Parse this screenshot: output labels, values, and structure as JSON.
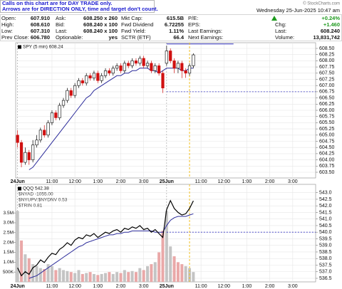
{
  "header": {
    "notice": [
      "Calls on this chart are for DAY TRADE only.",
      "Arrows are for DIRECTION ONLY, time and target don't count."
    ],
    "copyright": "© StockCharts.com",
    "date": "Wednesday 25-Jun-2025 10:47 am",
    "quote": [
      [
        {
          "label": "Open:",
          "value": "607.910"
        },
        {
          "label": "High:",
          "value": "608.610"
        },
        {
          "label": "Low:",
          "value": "607.310"
        },
        {
          "label": "Prev Close:",
          "value": "606.780"
        }
      ],
      [
        {
          "label": "Ask:",
          "value": "608.250 x 260"
        },
        {
          "label": "Bid:",
          "value": "608.240 x 100"
        },
        {
          "label": "Last:",
          "value": "608.240 x 100"
        },
        {
          "label": "Optionable:",
          "value": "yes"
        }
      ],
      [
        {
          "label": "Mkt Cap:",
          "value": "615.5B"
        },
        {
          "label": "Fwd Dividend",
          "value": "6.72255"
        },
        {
          "label": "Fwd Yield:",
          "value": "1.11%"
        },
        {
          "label": "SCTR (ETF)",
          "value": "66.4"
        }
      ],
      [
        {
          "label": "P/E:"
        },
        {
          "label": "EPS:"
        },
        {
          "label": "Last Earnings:"
        },
        {
          "label": "Next Earnings:"
        }
      ],
      [
        {
          "value": "+0.24%"
        },
        {
          "label": "Chg:",
          "value": "+1.460"
        },
        {
          "label": "Last:",
          "value": "608.240"
        },
        {
          "label": "Volume:",
          "value": "13,831,742"
        }
      ]
    ]
  },
  "chart_data": [
    {
      "type": "candlestick",
      "legend": [
        "SPY (5 min) 608.24"
      ],
      "x": [
        0,
        2,
        4,
        6,
        8,
        10,
        12,
        14,
        16,
        18,
        20,
        22,
        24,
        26,
        28,
        30,
        32,
        34,
        36,
        38,
        40,
        42,
        44,
        46,
        48,
        50,
        52,
        54,
        56,
        58,
        60,
        62,
        64,
        66,
        68,
        70,
        72,
        74,
        76,
        78,
        80,
        82,
        84,
        86,
        88,
        90,
        92
      ],
      "open": [
        605.0,
        604.7,
        603.9,
        604.3,
        604.0,
        604.6,
        604.8,
        605.2,
        605.0,
        605.5,
        605.9,
        605.7,
        606.2,
        606.4,
        606.8,
        606.6,
        607.0,
        607.2,
        607.1,
        607.4,
        607.3,
        607.5,
        607.2,
        607.4,
        607.6,
        607.5,
        607.7,
        607.8,
        607.6,
        607.9,
        607.8,
        608.0,
        607.9,
        608.1,
        607.8,
        607.9,
        607.6,
        607.8,
        607.5,
        607.9,
        608.4,
        608.0,
        607.7,
        607.9,
        607.6,
        607.5,
        607.8
      ],
      "high": [
        605.2,
        604.8,
        604.5,
        604.4,
        604.8,
        605.0,
        605.3,
        605.4,
        605.6,
        606.0,
        606.0,
        606.3,
        606.5,
        606.9,
        606.9,
        607.1,
        607.3,
        607.3,
        607.5,
        607.5,
        607.6,
        607.6,
        607.5,
        607.7,
        607.7,
        607.8,
        607.9,
        607.9,
        608.0,
        608.0,
        608.1,
        608.1,
        608.2,
        608.2,
        608.0,
        608.0,
        607.9,
        607.9,
        607.6,
        608.61,
        608.5,
        608.1,
        608.0,
        608.0,
        607.7,
        607.9,
        608.3
      ],
      "low": [
        604.5,
        603.7,
        603.8,
        603.8,
        603.9,
        604.5,
        604.7,
        604.9,
        604.9,
        605.4,
        605.6,
        605.6,
        606.1,
        606.3,
        606.5,
        606.5,
        606.9,
        607.0,
        607.0,
        607.2,
        607.2,
        607.1,
        607.1,
        607.3,
        607.4,
        607.4,
        607.6,
        607.5,
        607.5,
        607.7,
        607.7,
        607.8,
        607.8,
        607.7,
        607.7,
        607.5,
        607.5,
        607.4,
        606.7,
        607.8,
        607.9,
        607.5,
        607.5,
        607.3,
        607.31,
        607.4,
        607.7
      ],
      "close": [
        604.7,
        603.9,
        604.3,
        604.0,
        604.6,
        604.8,
        605.2,
        605.0,
        605.5,
        605.9,
        605.7,
        606.2,
        606.4,
        606.8,
        606.6,
        607.0,
        607.2,
        607.1,
        607.4,
        607.3,
        607.5,
        607.2,
        607.4,
        607.6,
        607.5,
        607.7,
        607.8,
        607.6,
        607.9,
        607.8,
        608.0,
        607.9,
        608.1,
        607.8,
        607.9,
        607.6,
        607.8,
        607.5,
        606.9,
        608.4,
        608.0,
        607.7,
        607.9,
        607.6,
        607.5,
        607.8,
        608.24
      ],
      "up_color": "#000000",
      "down_color": "#d01010",
      "ma": {
        "color": "#2b2b9a",
        "values": [
          null,
          null,
          null,
          603.6,
          603.7,
          603.9,
          604.1,
          604.3,
          604.5,
          604.7,
          604.9,
          605.1,
          605.3,
          605.5,
          605.7,
          605.9,
          606.1,
          606.3,
          606.5,
          606.6,
          606.8,
          606.9,
          607.0,
          607.1,
          607.2,
          607.3,
          607.4,
          607.4,
          607.5,
          607.5,
          607.6,
          607.6,
          607.7,
          607.7,
          607.7,
          607.6,
          607.6,
          607.5,
          607.6,
          607.7,
          607.7,
          607.7,
          607.7,
          607.6,
          607.6,
          607.7,
          607.7
        ]
      },
      "xlim": [
        -1,
        156
      ],
      "xticks": [
        {
          "value": 0,
          "label": "24Jun"
        },
        {
          "value": 18,
          "label": "11:00"
        },
        {
          "value": 30,
          "label": "12:00"
        },
        {
          "value": 42,
          "label": "1:00"
        },
        {
          "value": 54,
          "label": "2:00"
        },
        {
          "value": 66,
          "label": "3:00"
        },
        {
          "value": 78,
          "label": "25Jun"
        },
        {
          "value": 96,
          "label": "11:00"
        },
        {
          "value": 108,
          "label": "12:00"
        },
        {
          "value": 120,
          "label": "1:00"
        },
        {
          "value": 132,
          "label": "2:00"
        },
        {
          "value": 144,
          "label": "3:00"
        }
      ],
      "ylim": [
        603.27,
        608.73
      ],
      "yticks": [
        {
          "value": 603.5,
          "label": "603.50"
        },
        603.75,
        {
          "value": 604,
          "label": "604.00"
        },
        604.25,
        {
          "value": 604.5,
          "label": "604.50"
        },
        604.75,
        {
          "value": 605,
          "label": "605.00"
        },
        605.25,
        {
          "value": 605.5,
          "label": "605.50"
        },
        605.75,
        {
          "value": 606,
          "label": "606.00"
        },
        606.25,
        {
          "value": 606.5,
          "label": "606.50"
        },
        606.75,
        {
          "value": 607,
          "label": "607.00"
        },
        607.25,
        {
          "value": 607.5,
          "label": "607.50"
        },
        607.75,
        {
          "value": 608,
          "label": "608.00"
        },
        608.25,
        {
          "value": 608.5,
          "label": "608.50"
        }
      ],
      "hlines": [
        {
          "value": 608.68,
          "from": 78,
          "to": 113,
          "dashed": false,
          "color": "#3030c0"
        },
        {
          "value": 606.75,
          "from": 78,
          "to": 156,
          "dashed": true,
          "color": "#3030c0"
        }
      ],
      "marker_x": 90,
      "marker_color": "#f0c020",
      "grid": true
    },
    {
      "type": "line",
      "legend": [
        "QQQ 542.38",
        "$NYAD -1055.00",
        "$NYUPV:$NYDNV 0.53",
        "$TRIN 0.81"
      ],
      "x": [
        0,
        2,
        4,
        6,
        8,
        10,
        12,
        14,
        16,
        18,
        20,
        22,
        24,
        26,
        28,
        30,
        32,
        34,
        36,
        38,
        40,
        42,
        44,
        46,
        48,
        50,
        52,
        54,
        56,
        58,
        60,
        62,
        64,
        66,
        68,
        70,
        72,
        74,
        76,
        78,
        80,
        82,
        84,
        86,
        88,
        90,
        92
      ],
      "values": [
        537.3,
        536.7,
        537.0,
        536.8,
        537.3,
        537.5,
        537.9,
        537.7,
        538.1,
        538.4,
        538.3,
        538.7,
        538.9,
        539.2,
        539.0,
        539.4,
        539.6,
        539.5,
        539.8,
        539.7,
        539.9,
        539.6,
        539.8,
        540.0,
        539.9,
        540.1,
        540.2,
        540.0,
        540.3,
        540.2,
        540.4,
        540.3,
        540.5,
        540.2,
        540.3,
        540.0,
        540.2,
        539.9,
        539.6,
        541.7,
        542.4,
        541.8,
        541.5,
        541.3,
        541.4,
        541.8,
        542.38
      ],
      "color": "#000000",
      "ma": {
        "color": "#2b2b9a",
        "values": [
          null,
          null,
          null,
          536.5,
          536.6,
          536.7,
          536.9,
          537.1,
          537.3,
          537.5,
          537.7,
          537.9,
          538.1,
          538.3,
          538.5,
          538.7,
          538.9,
          539.0,
          539.2,
          539.3,
          539.4,
          539.5,
          539.6,
          539.7,
          539.8,
          539.8,
          539.9,
          539.9,
          540.0,
          540.0,
          540.1,
          540.1,
          540.1,
          540.1,
          540.1,
          540.1,
          540.0,
          540.0,
          540.0,
          540.5,
          540.9,
          541.1,
          541.2,
          541.2,
          541.2,
          541.3,
          541.4
        ]
      },
      "volume": {
        "axis": "y2",
        "up_color": "#c4c4c4",
        "down_color": "#eaa8a8",
        "values": [
          3600000,
          2100000,
          1400000,
          1200000,
          900000,
          800000,
          700000,
          650000,
          900000,
          800000,
          600000,
          700000,
          600000,
          550000,
          500000,
          450000,
          600000,
          400000,
          450000,
          500000,
          400000,
          350000,
          400000,
          450000,
          500000,
          400000,
          500000,
          450000,
          600000,
          500000,
          550000,
          500000,
          700000,
          600000,
          800000,
          900000,
          1000000,
          1500000,
          2600000,
          3600000,
          1800000,
          1300000,
          1000000,
          900000,
          800000,
          700000,
          500000
        ]
      },
      "xlim": [
        -1,
        156
      ],
      "xticks": [
        {
          "value": 0,
          "label": "24Jun"
        },
        {
          "value": 18,
          "label": "11:00"
        },
        {
          "value": 30,
          "label": "12:00"
        },
        {
          "value": 42,
          "label": "1:00"
        },
        {
          "value": 54,
          "label": "2:00"
        },
        {
          "value": 66,
          "label": "3:00"
        },
        {
          "value": 78,
          "label": "25Jun"
        },
        {
          "value": 96,
          "label": "11:00"
        },
        {
          "value": 108,
          "label": "12:00"
        },
        {
          "value": 120,
          "label": "1:00"
        },
        {
          "value": 132,
          "label": "2:00"
        },
        {
          "value": 144,
          "label": "3:00"
        }
      ],
      "ylim": [
        536.23,
        543.63
      ],
      "yticks": [
        536.5,
        {
          "value": 537,
          "label": "537.0"
        },
        537.5,
        {
          "value": 538,
          "label": "538.0"
        },
        538.5,
        {
          "value": 539,
          "label": "539.0"
        },
        539.5,
        {
          "value": 540,
          "label": "540.0"
        },
        540.5,
        {
          "value": 541,
          "label": "541.0"
        },
        541.5,
        {
          "value": 542,
          "label": "542.0"
        },
        542.5,
        {
          "value": 543,
          "label": "543.0"
        }
      ],
      "y2lim": [
        0,
        4950000
      ],
      "y2ticks": [
        {
          "value": 500000,
          "label": "500K"
        },
        {
          "value": 1000000,
          "label": "1.0M"
        },
        {
          "value": 1500000,
          "label": "1.5M"
        },
        {
          "value": 2000000,
          "label": "2.0M"
        },
        {
          "value": 2500000,
          "label": "2.5M"
        },
        {
          "value": 3000000,
          "label": "3.0M"
        },
        {
          "value": 3500000,
          "label": "3.5M"
        }
      ],
      "hlines": [
        {
          "value": 540.0,
          "from": 78,
          "to": 156,
          "dashed": true,
          "color": "#3030c0"
        }
      ],
      "marker_x": 90,
      "marker_color": "#f0c020",
      "grid": true
    }
  ]
}
